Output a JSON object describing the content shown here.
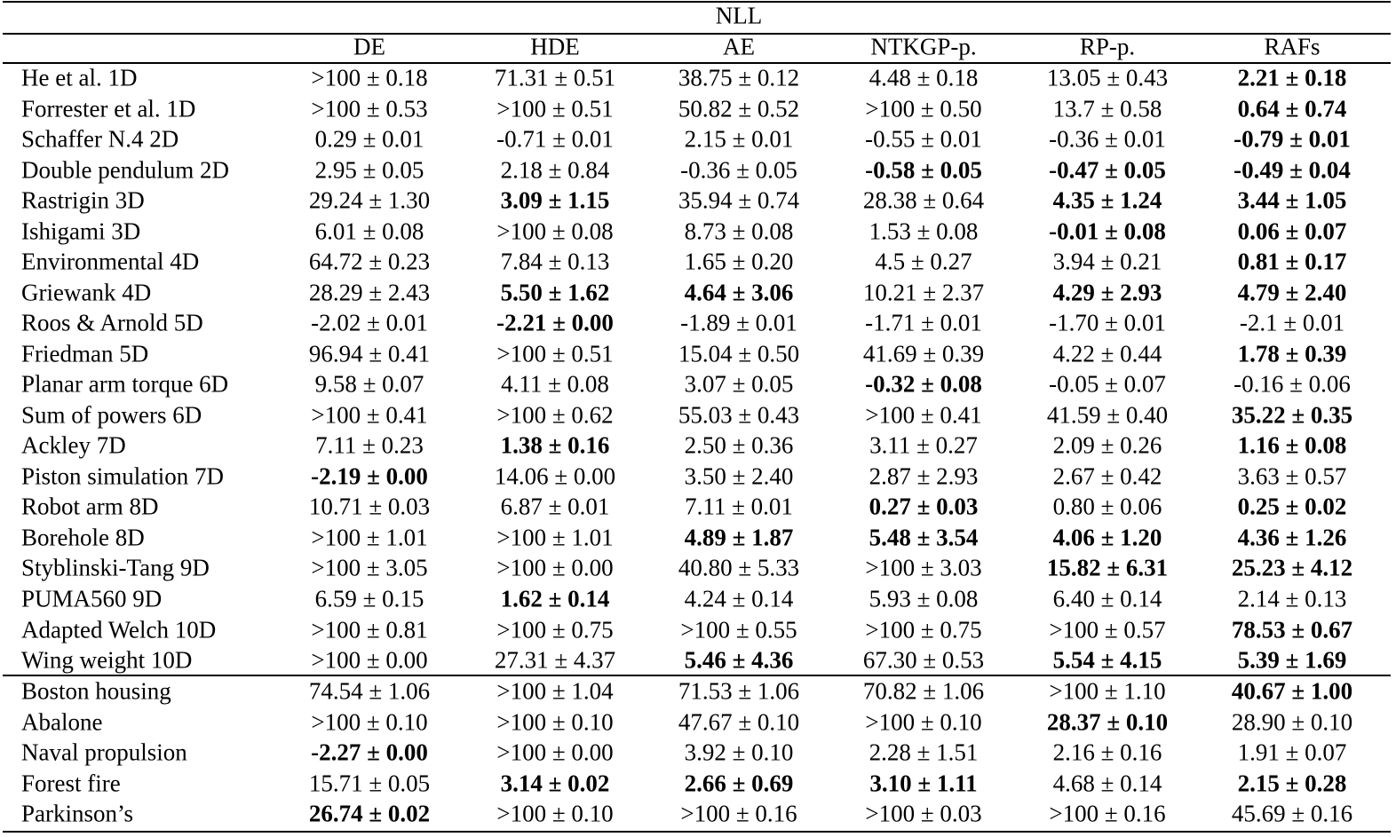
{
  "table": {
    "caption": "NLL",
    "columns": [
      "DE",
      "HDE",
      "AE",
      "NTKGP-p.",
      "RP-p.",
      "RAFs"
    ],
    "groups": [
      {
        "rows": [
          {
            "label": "He et al. 1D",
            "cells": [
              ">100 ± 0.18",
              "71.31 ± 0.51",
              "38.75 ± 0.12",
              "4.48 ± 0.18",
              "13.05 ± 0.43",
              {
                "text": "2.21 ± 0.18",
                "bold": true
              }
            ]
          },
          {
            "label": "Forrester et al. 1D",
            "cells": [
              ">100 ± 0.53",
              ">100 ± 0.51",
              "50.82 ± 0.52",
              ">100 ± 0.50",
              "13.7 ± 0.58",
              {
                "text": "0.64 ± 0.74",
                "bold": true
              }
            ]
          },
          {
            "label": "Schaffer N.4 2D",
            "cells": [
              "0.29 ± 0.01",
              "-0.71 ± 0.01",
              "2.15 ± 0.01",
              "-0.55 ± 0.01",
              "-0.36 ± 0.01",
              {
                "text": "-0.79 ± 0.01",
                "bold": true
              }
            ]
          },
          {
            "label": "Double pendulum 2D",
            "cells": [
              "2.95 ± 0.05",
              "2.18 ± 0.84",
              "-0.36 ± 0.05",
              {
                "text": "-0.58 ± 0.05",
                "bold": true
              },
              {
                "text": "-0.47 ± 0.05",
                "bold": true
              },
              {
                "text": "-0.49 ± 0.04",
                "bold": true
              }
            ]
          },
          {
            "label": "Rastrigin 3D",
            "cells": [
              "29.24 ± 1.30",
              {
                "text": "3.09 ± 1.15",
                "bold": true
              },
              "35.94 ± 0.74",
              "28.38 ± 0.64",
              {
                "text": "4.35 ± 1.24",
                "bold": true
              },
              {
                "text": "3.44 ± 1.05",
                "bold": true
              }
            ]
          },
          {
            "label": "Ishigami 3D",
            "cells": [
              "6.01 ± 0.08",
              ">100 ± 0.08",
              "8.73 ± 0.08",
              "1.53 ± 0.08",
              {
                "text": "-0.01 ± 0.08",
                "bold": true
              },
              {
                "text": "0.06 ± 0.07",
                "bold": true
              }
            ]
          },
          {
            "label": "Environmental 4D",
            "cells": [
              "64.72 ± 0.23",
              "7.84 ± 0.13",
              "1.65 ± 0.20",
              "4.5 ± 0.27",
              "3.94 ± 0.21",
              {
                "text": "0.81 ± 0.17",
                "bold": true
              }
            ]
          },
          {
            "label": "Griewank 4D",
            "cells": [
              "28.29 ± 2.43",
              {
                "text": "5.50 ± 1.62",
                "bold": true
              },
              {
                "text": "4.64 ± 3.06",
                "bold": true
              },
              "10.21 ± 2.37",
              {
                "text": "4.29 ± 2.93",
                "bold": true
              },
              {
                "text": "4.79 ± 2.40",
                "bold": true
              }
            ]
          },
          {
            "label": "Roos & Arnold 5D",
            "cells": [
              "-2.02 ± 0.01",
              {
                "text": "-2.21 ± 0.00",
                "bold": true
              },
              "-1.89 ± 0.01",
              "-1.71 ± 0.01",
              "-1.70 ± 0.01",
              "-2.1 ± 0.01"
            ]
          },
          {
            "label": "Friedman 5D",
            "cells": [
              "96.94 ± 0.41",
              ">100 ± 0.51",
              "15.04 ± 0.50",
              "41.69 ± 0.39",
              "4.22 ± 0.44",
              {
                "text": "1.78 ± 0.39",
                "bold": true
              }
            ]
          },
          {
            "label": "Planar arm torque 6D",
            "cells": [
              "9.58 ± 0.07",
              "4.11 ± 0.08",
              "3.07 ± 0.05",
              {
                "text": "-0.32 ± 0.08",
                "bold": true
              },
              "-0.05 ± 0.07",
              "-0.16 ± 0.06"
            ]
          },
          {
            "label": "Sum of powers 6D",
            "cells": [
              ">100 ± 0.41",
              ">100 ± 0.62",
              "55.03 ± 0.43",
              ">100 ± 0.41",
              "41.59 ± 0.40",
              {
                "text": "35.22 ± 0.35",
                "bold": true
              }
            ]
          },
          {
            "label": "Ackley 7D",
            "cells": [
              "7.11 ± 0.23",
              {
                "text": "1.38 ± 0.16",
                "bold": true
              },
              "2.50 ± 0.36",
              "3.11 ± 0.27",
              "2.09 ± 0.26",
              {
                "text": "1.16 ± 0.08",
                "bold": true
              }
            ]
          },
          {
            "label": "Piston simulation 7D",
            "cells": [
              {
                "text": "-2.19 ± 0.00",
                "bold": true
              },
              "14.06 ± 0.00",
              "3.50 ± 2.40",
              "2.87 ± 2.93",
              "2.67 ± 0.42",
              "3.63 ± 0.57"
            ]
          },
          {
            "label": "Robot arm 8D",
            "cells": [
              "10.71 ± 0.03",
              "6.87 ± 0.01",
              "7.11 ± 0.01",
              {
                "text": "0.27 ± 0.03",
                "bold": true
              },
              "0.80 ± 0.06",
              {
                "text": "0.25 ± 0.02",
                "bold": true
              }
            ]
          },
          {
            "label": "Borehole 8D",
            "cells": [
              ">100 ± 1.01",
              ">100 ± 1.01",
              {
                "text": "4.89 ± 1.87",
                "bold": true
              },
              {
                "text": "5.48 ± 3.54",
                "bold": true
              },
              {
                "text": "4.06 ± 1.20",
                "bold": true
              },
              {
                "text": "4.36 ± 1.26",
                "bold": true
              }
            ]
          },
          {
            "label": "Styblinski-Tang 9D",
            "cells": [
              ">100 ± 3.05",
              ">100 ± 0.00",
              "40.80 ± 5.33",
              ">100 ± 3.03",
              {
                "text": "15.82 ± 6.31",
                "bold": true
              },
              {
                "text": "25.23 ± 4.12",
                "bold": true
              }
            ]
          },
          {
            "label": "PUMA560 9D",
            "cells": [
              "6.59 ± 0.15",
              {
                "text": "1.62 ± 0.14",
                "bold": true
              },
              "4.24 ± 0.14",
              "5.93 ± 0.08",
              "6.40 ± 0.14",
              "2.14 ± 0.13"
            ]
          },
          {
            "label": "Adapted Welch 10D",
            "cells": [
              ">100 ± 0.81",
              ">100 ± 0.75",
              ">100 ± 0.55",
              ">100 ± 0.75",
              ">100 ± 0.57",
              {
                "text": "78.53 ± 0.67",
                "bold": true
              }
            ]
          },
          {
            "label": "Wing weight 10D",
            "cells": [
              ">100 ± 0.00",
              "27.31 ± 4.37",
              {
                "text": "5.46 ± 4.36",
                "bold": true
              },
              "67.30 ± 0.53",
              {
                "text": "5.54 ± 4.15",
                "bold": true
              },
              {
                "text": "5.39 ± 1.69",
                "bold": true
              }
            ]
          }
        ]
      },
      {
        "rows": [
          {
            "label": "Boston housing",
            "cells": [
              "74.54 ± 1.06",
              ">100 ± 1.04",
              "71.53 ± 1.06",
              "70.82 ± 1.06",
              ">100 ± 1.10",
              {
                "text": "40.67 ± 1.00",
                "bold": true
              }
            ]
          },
          {
            "label": "Abalone",
            "cells": [
              ">100 ± 0.10",
              ">100 ± 0.10",
              "47.67 ± 0.10",
              ">100 ± 0.10",
              {
                "text": "28.37 ± 0.10",
                "bold": true
              },
              "28.90 ± 0.10"
            ]
          },
          {
            "label": "Naval propulsion",
            "cells": [
              {
                "text": "-2.27 ± 0.00",
                "bold": true
              },
              ">100 ± 0.00",
              "3.92 ± 0.10",
              "2.28 ± 1.51",
              "2.16 ± 0.16",
              "1.91 ± 0.07"
            ]
          },
          {
            "label": "Forest fire",
            "cells": [
              "15.71 ± 0.05",
              {
                "text": "3.14 ± 0.02",
                "bold": true
              },
              {
                "text": "2.66 ± 0.69",
                "bold": true
              },
              {
                "text": "3.10 ± 1.11",
                "bold": true
              },
              "4.68 ± 0.14",
              {
                "text": "2.15 ± 0.28",
                "bold": true
              }
            ]
          },
          {
            "label": "Parkinson’s",
            "cells": [
              {
                "text": "26.74 ± 0.02",
                "bold": true
              },
              ">100 ± 0.10",
              ">100 ± 0.16",
              ">100 ± 0.03",
              ">100 ± 0.16",
              "45.69 ± 0.16"
            ]
          }
        ]
      }
    ]
  }
}
